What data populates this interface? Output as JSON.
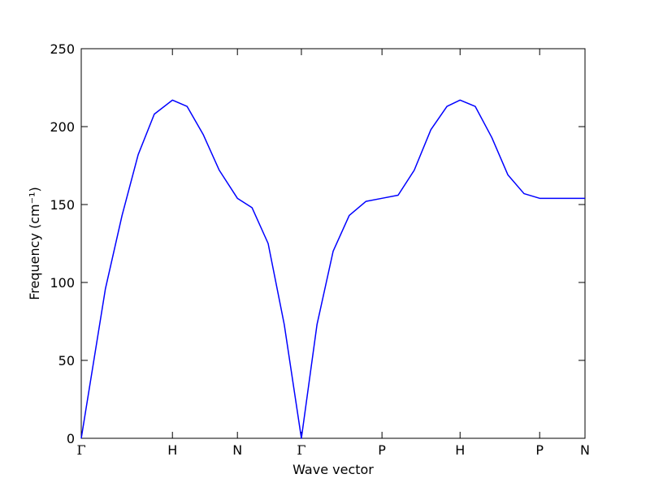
{
  "chart_data": {
    "type": "line",
    "xlabel": "Wave vector",
    "ylabel": "Frequency (cm⁻¹)",
    "x": [
      0,
      0.024,
      0.048,
      0.081,
      0.113,
      0.145,
      0.181,
      0.21,
      0.242,
      0.274,
      0.31,
      0.339,
      0.371,
      0.403,
      0.437,
      0.468,
      0.5,
      0.532,
      0.565,
      0.597,
      0.629,
      0.661,
      0.694,
      0.726,
      0.752,
      0.782,
      0.815,
      0.847,
      0.879,
      0.91,
      0.952,
      1
    ],
    "series": [
      {
        "color": "#0000ff",
        "values": [
          0,
          48,
          96,
          143,
          182,
          208,
          217,
          213,
          195,
          172,
          154,
          148,
          125,
          73,
          0,
          73,
          120,
          143,
          152,
          154,
          156,
          172,
          198,
          213,
          217,
          213,
          193,
          169,
          157,
          154,
          154,
          154
        ]
      }
    ],
    "xlim": [
      0,
      1
    ],
    "xticks": [
      {
        "value": 0,
        "label": "Γ"
      },
      {
        "value": 0.181,
        "label": "H"
      },
      {
        "value": 0.31,
        "label": "N"
      },
      {
        "value": 0.437,
        "label": "Γ"
      },
      {
        "value": 0.597,
        "label": "P"
      },
      {
        "value": 0.752,
        "label": "H"
      },
      {
        "value": 0.91,
        "label": "P"
      },
      {
        "value": 1,
        "label": "N"
      }
    ],
    "ylim": [
      0,
      250
    ],
    "yticks": [
      0,
      50,
      100,
      150,
      200,
      250
    ]
  }
}
